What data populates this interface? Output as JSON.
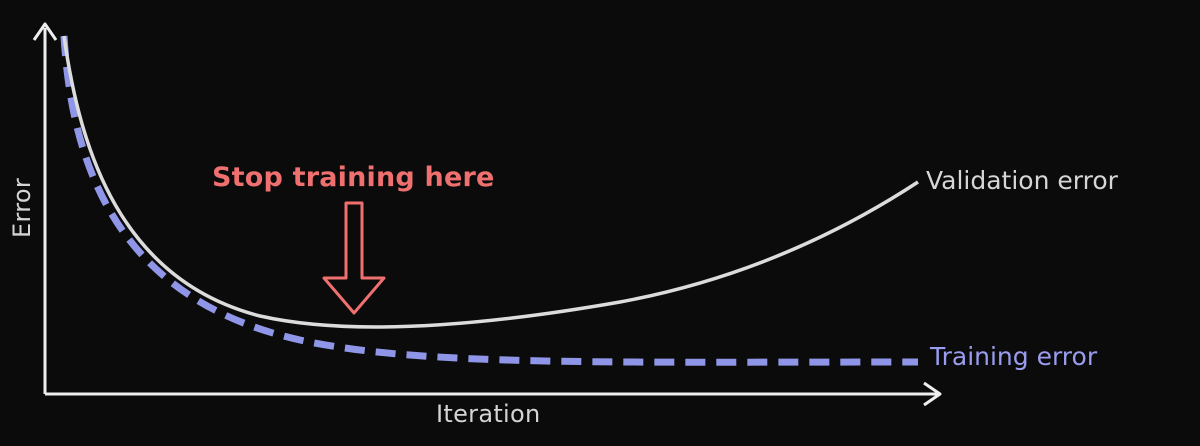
{
  "diagram": {
    "axes": {
      "x_label": "Iteration",
      "y_label": "Error"
    },
    "annotation": {
      "text": "Stop training here"
    },
    "series": [
      {
        "name": "Validation error",
        "color": "#dcdcdc",
        "style": "solid"
      },
      {
        "name": "Training error",
        "color": "#8f96e8",
        "style": "dashed"
      }
    ],
    "colors": {
      "background": "#0b0b0b",
      "axis": "#eeeeee",
      "annotation": "#f07070"
    }
  }
}
